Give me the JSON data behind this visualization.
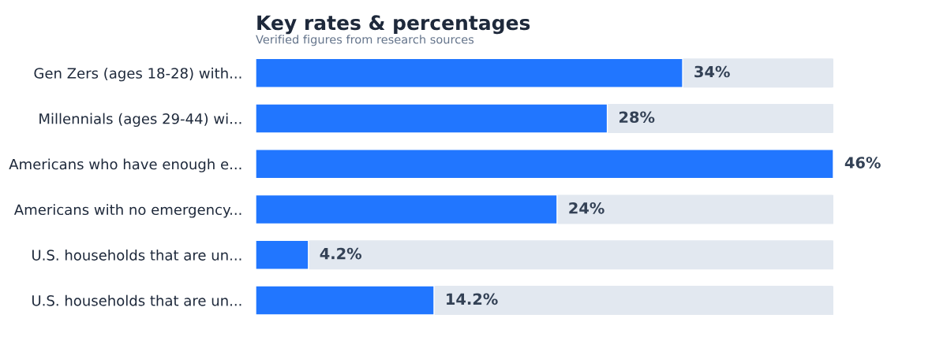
{
  "chart_data": {
    "type": "bar",
    "orientation": "horizontal",
    "title": "Key rates & percentages",
    "subtitle": "Verified figures from research sources",
    "categories": [
      "Gen Zers (ages 18-28) with...",
      "Millennials (ages 29-44) wi...",
      "Americans who have enough e...",
      "Americans with no emergency...",
      "U.S. households that are un...",
      "U.S. households that are un..."
    ],
    "values": [
      34,
      28,
      46,
      24,
      4.2,
      14.2
    ],
    "value_labels": [
      "34%",
      "28%",
      "46%",
      "24%",
      "4.2%",
      "14.2%"
    ],
    "color": "#2176ff"
  }
}
